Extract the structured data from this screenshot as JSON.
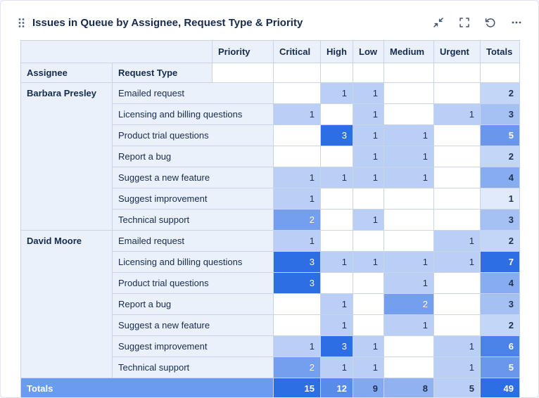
{
  "widget": {
    "title": "Issues in Queue by Assignee, Request Type & Priority",
    "toolbar_icons": [
      "collapse-icon",
      "fullscreen-icon",
      "refresh-icon",
      "more-icon"
    ]
  },
  "colors": {
    "heat_base": "#2E6EE5",
    "header_bg": "#EAF1FB",
    "label_bg": "#EAF1FB",
    "border": "#C9D4E6",
    "title_text": "#172B4D",
    "icon": "#44546F",
    "grand_totals_bg": "#699BEF"
  },
  "table": {
    "corner_headers": {
      "assignee": "Assignee",
      "request_type": "Request Type",
      "priority": "Priority"
    },
    "priority_columns": [
      "Critical",
      "High",
      "Low",
      "Medium",
      "Urgent"
    ],
    "totals_label": "Totals",
    "max_detail": 3,
    "max_total": 7,
    "groups": [
      {
        "assignee": "Barbara Presley",
        "rows": [
          {
            "request_type": "Emailed request",
            "values": [
              null,
              1,
              1,
              null,
              null
            ],
            "total": 2
          },
          {
            "request_type": "Licensing and billing questions",
            "values": [
              1,
              null,
              1,
              null,
              1
            ],
            "total": 3
          },
          {
            "request_type": "Product trial questions",
            "values": [
              null,
              3,
              1,
              1,
              null
            ],
            "total": 5
          },
          {
            "request_type": "Report a bug",
            "values": [
              null,
              null,
              1,
              1,
              null
            ],
            "total": 2
          },
          {
            "request_type": "Suggest a new feature",
            "values": [
              1,
              1,
              1,
              1,
              null
            ],
            "total": 4
          },
          {
            "request_type": "Suggest improvement",
            "values": [
              1,
              null,
              null,
              null,
              null
            ],
            "total": 1
          },
          {
            "request_type": "Technical support",
            "values": [
              2,
              null,
              1,
              null,
              null
            ],
            "total": 3
          }
        ]
      },
      {
        "assignee": "David Moore",
        "rows": [
          {
            "request_type": "Emailed request",
            "values": [
              1,
              null,
              null,
              null,
              1
            ],
            "total": 2
          },
          {
            "request_type": "Licensing and billing questions",
            "values": [
              3,
              1,
              1,
              1,
              1
            ],
            "total": 7
          },
          {
            "request_type": "Product trial questions",
            "values": [
              3,
              null,
              null,
              1,
              null
            ],
            "total": 4
          },
          {
            "request_type": "Report a bug",
            "values": [
              null,
              1,
              null,
              2,
              null
            ],
            "total": 3
          },
          {
            "request_type": "Suggest a new feature",
            "values": [
              null,
              1,
              null,
              1,
              null
            ],
            "total": 2
          },
          {
            "request_type": "Suggest improvement",
            "values": [
              1,
              3,
              1,
              null,
              1
            ],
            "total": 6
          },
          {
            "request_type": "Technical support",
            "values": [
              2,
              1,
              1,
              null,
              1
            ],
            "total": 5
          }
        ]
      }
    ],
    "grand_totals": {
      "label": "Totals",
      "values": [
        15,
        12,
        9,
        8,
        5
      ],
      "total": 49,
      "max": 15
    }
  }
}
